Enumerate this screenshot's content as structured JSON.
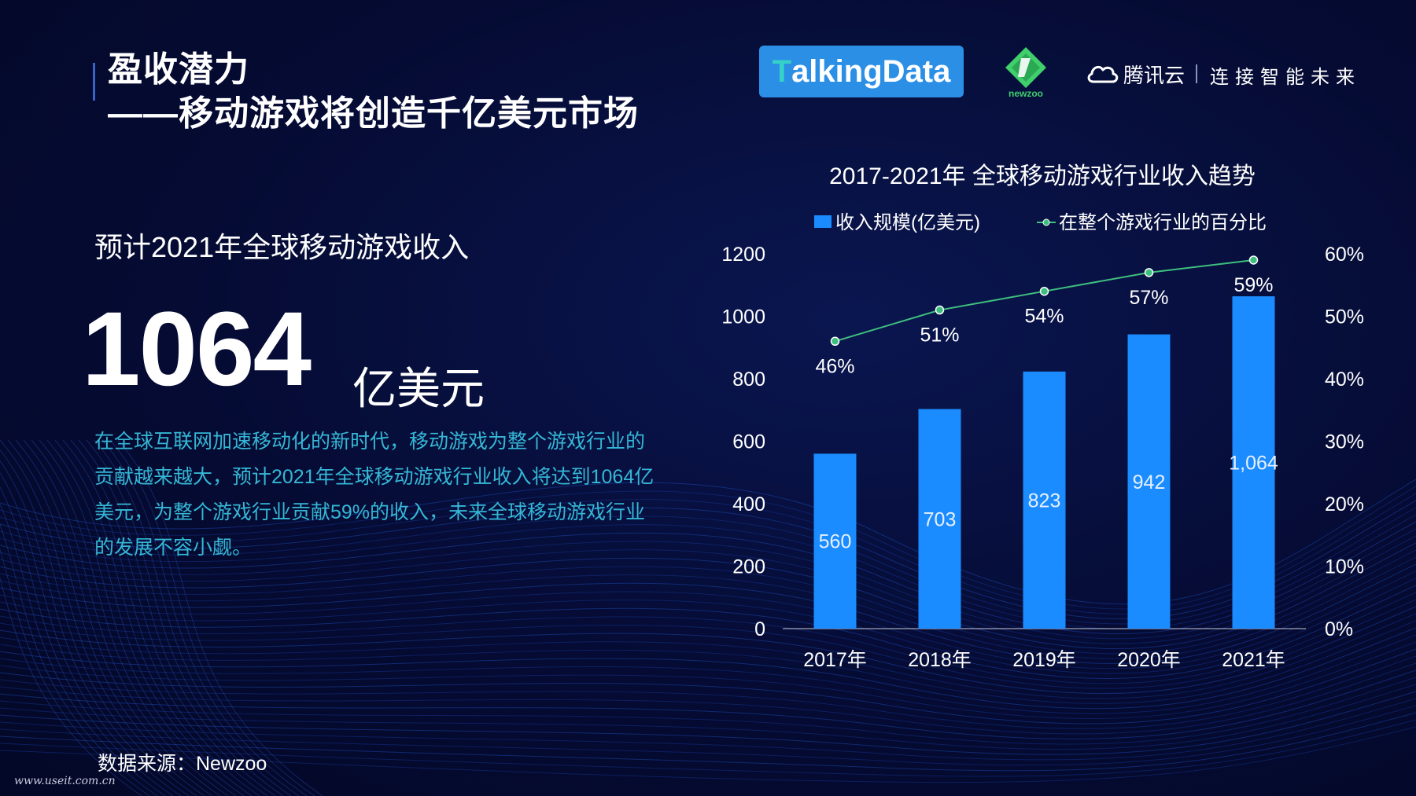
{
  "slide": {
    "title_line1": "盈收潜力",
    "title_line2": "——移动游戏将创造千亿美元市场",
    "subtitle": "预计2021年全球移动游戏收入",
    "big_number": "1064",
    "big_unit": "亿美元",
    "description": "在全球互联网加速移动化的新时代，移动游戏为整个游戏行业的贡献越来越大，预计2021年全球移动游戏行业收入将达到1064亿美元，为整个游戏行业贡献59%的收入，未来全球移动游戏行业的发展不容小觑。",
    "source": "数据来源：Newzoo",
    "watermark": "www.useit.com.cn"
  },
  "logos": {
    "talkingdata_mark": "T",
    "talkingdata_rest": "alkingData",
    "newzoo": "newzoo",
    "tencent_name": "腾讯云",
    "tencent_slogan": "连接智能未来"
  },
  "colors": {
    "background": "#050b33",
    "bar": "#1a8cff",
    "line": "#3fbf7f",
    "description_text": "#35b7d6",
    "talkingdata_bg": "#2c8fe6",
    "newzoo_green": "#3fcf6b"
  },
  "icons": [
    "cloud-icon",
    "newzoo-logo-icon"
  ],
  "chart_data": {
    "type": "bar",
    "title": "2017-2021年  全球移动游戏行业收入趋势",
    "categories": [
      "2017年",
      "2018年",
      "2019年",
      "2020年",
      "2021年"
    ],
    "series": [
      {
        "name": "收入规模(亿美元)",
        "type": "bar",
        "axis": "left",
        "values": [
          560,
          703,
          823,
          942,
          1064
        ],
        "labels": [
          "560",
          "703",
          "823",
          "942",
          "1,064"
        ]
      },
      {
        "name": "在整个游戏行业的百分比",
        "type": "line",
        "axis": "right",
        "values": [
          46,
          51,
          54,
          57,
          59
        ],
        "labels": [
          "46%",
          "51%",
          "54%",
          "57%",
          "59%"
        ]
      }
    ],
    "y_left": {
      "min": 0,
      "max": 1200,
      "ticks": [
        "0",
        "200",
        "400",
        "600",
        "800",
        "1000",
        "1200"
      ]
    },
    "y_right": {
      "min": 0,
      "max": 60,
      "ticks": [
        "0%",
        "10%",
        "20%",
        "30%",
        "40%",
        "50%",
        "60%"
      ]
    },
    "grid": false,
    "legend_position": "top"
  }
}
